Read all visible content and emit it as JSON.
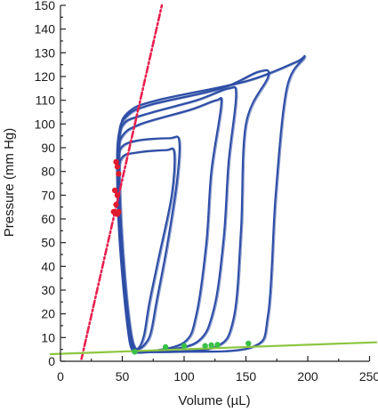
{
  "chart_data": {
    "type": "line",
    "title": "",
    "xlabel": "Volume (µL)",
    "ylabel": "Pressure (mm Hg)",
    "xlim": [
      0,
      260
    ],
    "ylim": [
      0,
      150
    ],
    "x_ticks": [
      "0",
      "50",
      "100",
      "150",
      "200",
      "250"
    ],
    "y_ticks": [
      "0",
      "10",
      "20",
      "30",
      "40",
      "50",
      "60",
      "70",
      "80",
      "90",
      "100",
      "110",
      "120",
      "130",
      "140",
      "150"
    ],
    "grid": false,
    "legend": "none",
    "colors": {
      "loops": "#2e4ea6",
      "espvr": "#e8204f",
      "edpvr": "#8cc63f",
      "esp_points": "#e01b2e",
      "edp_points": "#38c048"
    },
    "series": [
      {
        "style": "loop",
        "x": [
          60,
          57,
          52,
          48,
          47,
          50,
          62,
          85,
          92,
          90,
          80,
          72,
          68,
          65,
          62,
          60
        ],
        "y": [
          4,
          8,
          30,
          55,
          78,
          86,
          88,
          89,
          88,
          70,
          45,
          25,
          12,
          7,
          5,
          4
        ]
      },
      {
        "style": "loop",
        "x": [
          60,
          56,
          51,
          47,
          46,
          49,
          62,
          88,
          96,
          94,
          86,
          78,
          73,
          68,
          63,
          60
        ],
        "y": [
          4,
          8,
          30,
          58,
          82,
          90,
          93,
          94,
          93,
          75,
          48,
          26,
          12,
          7,
          5,
          4
        ]
      },
      {
        "style": "loop",
        "x": [
          62,
          57,
          51,
          47,
          46,
          50,
          65,
          105,
          126,
          130,
          122,
          118,
          110,
          100,
          70,
          62
        ],
        "y": [
          4,
          9,
          32,
          62,
          86,
          95,
          100,
          106,
          110,
          108,
          80,
          50,
          20,
          8,
          4,
          4
        ]
      },
      {
        "style": "loop",
        "x": [
          63,
          57,
          51,
          47,
          46,
          51,
          68,
          110,
          136,
          142,
          136,
          132,
          124,
          110,
          72,
          63
        ],
        "y": [
          4,
          9,
          32,
          64,
          90,
          100,
          104,
          110,
          115,
          112,
          84,
          52,
          22,
          8,
          4,
          4
        ]
      },
      {
        "style": "loop",
        "x": [
          64,
          57,
          51,
          47,
          47,
          53,
          72,
          130,
          160,
          168,
          150,
          146,
          140,
          125,
          80,
          64
        ],
        "y": [
          4,
          9,
          34,
          66,
          94,
          103,
          108,
          115,
          122,
          120,
          100,
          55,
          18,
          6,
          4,
          4
        ]
      },
      {
        "style": "loop",
        "x": [
          65,
          58,
          52,
          48,
          48,
          55,
          78,
          150,
          190,
          197,
          183,
          174,
          168,
          155,
          95,
          65
        ],
        "y": [
          4,
          9,
          35,
          70,
          96,
          105,
          110,
          118,
          126,
          128,
          115,
          70,
          20,
          6,
          4,
          4
        ]
      }
    ],
    "espvr_line": {
      "x": [
        17,
        82
      ],
      "y": [
        1,
        150
      ]
    },
    "edpvr_line": {
      "x": [
        -8,
        262
      ],
      "y": [
        3,
        8
      ]
    },
    "esp_points": {
      "x": [
        45,
        46,
        47,
        44,
        46,
        45,
        43,
        46,
        47
      ],
      "y": [
        84,
        82,
        79,
        72,
        70,
        66,
        63,
        62,
        63
      ]
    },
    "edp_points": {
      "x": [
        60,
        85,
        100,
        117,
        122,
        127,
        152
      ],
      "y": [
        4,
        6,
        6.5,
        6.5,
        6.8,
        7,
        7.5
      ]
    }
  }
}
